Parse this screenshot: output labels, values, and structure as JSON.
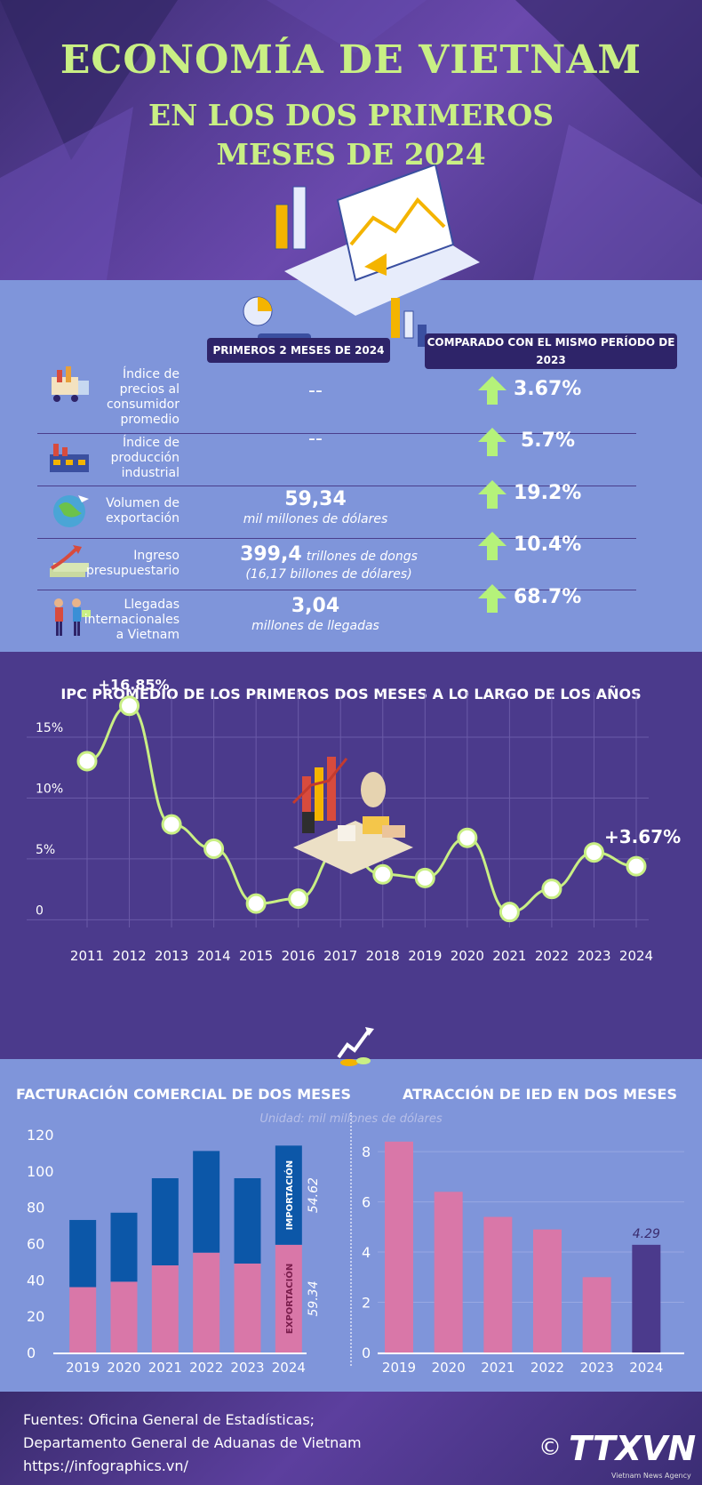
{
  "header": {
    "title_line1": "ECONOMÍA DE VIETNAM",
    "title_line2": "EN LOS DOS PRIMEROS",
    "title_line3": "MESES DE 2024"
  },
  "indicators": {
    "col1": "PRIMEROS 2 MESES DE 2024",
    "col2": "COMPARADO CON EL MISMO PERÍODO DE 2023",
    "rows": [
      {
        "label_lines": [
          "Índice de",
          "precios al",
          "consumidor",
          "promedio"
        ],
        "value": "--",
        "unit": "",
        "unit2": "",
        "change": "3.67%",
        "icon": "grocery-cart-icon"
      },
      {
        "label_lines": [
          "Índice de",
          "producción",
          "industrial"
        ],
        "value": "--",
        "unit": "",
        "unit2": "",
        "change": "5.7%",
        "icon": "factory-icon"
      },
      {
        "label_lines": [
          "Volumen de",
          "exportación"
        ],
        "value": "59,34",
        "unit": "mil millones de dólares",
        "unit2": "",
        "change": "19.2%",
        "icon": "globe-plane-icon"
      },
      {
        "label_lines": [
          "Ingreso",
          "presupuestario"
        ],
        "value": "399,4",
        "unit": "trillones de dongs",
        "unit2": "(16,17 billones de dólares)",
        "change": "10.4%",
        "icon": "money-growth-icon"
      },
      {
        "label_lines": [
          "Llegadas",
          "internacionales",
          "a Vietnam"
        ],
        "value": "3,04",
        "unit": "millones de llegadas",
        "unit2": "",
        "change": "68.7%",
        "icon": "tourists-icon"
      }
    ],
    "arrow_color": "#b5f27a"
  },
  "chart_data": [
    {
      "type": "line",
      "title": "IPC PROMEDIO DE LOS PRIMEROS DOS MESES A LO LARGO DE LOS AÑOS",
      "x": [
        "2011",
        "2012",
        "2013",
        "2014",
        "2015",
        "2016",
        "2017",
        "2018",
        "2019",
        "2020",
        "2021",
        "2022",
        "2023",
        "2024"
      ],
      "series": [
        {
          "values": [
            12.3,
            16.85,
            7.1,
            5.1,
            0.6,
            1.0,
            5.2,
            3.0,
            2.7,
            6.0,
            -0.1,
            1.8,
            4.8,
            3.67
          ]
        }
      ],
      "yticks": [
        0,
        5,
        10,
        15
      ],
      "ytick_labels": [
        "0",
        "5%",
        "10%",
        "15%"
      ],
      "ylim": [
        -1,
        18
      ],
      "annotations": [
        {
          "x": "2012",
          "text": "+16.85%"
        },
        {
          "x": "2024",
          "text": "+3.67%"
        }
      ],
      "line_color": "#c9ef84",
      "grid": true
    },
    {
      "type": "bar",
      "stacked": true,
      "title": "FACTURACIÓN COMERCIAL DE DOS MESES",
      "categories": [
        "2019",
        "2020",
        "2021",
        "2022",
        "2023",
        "2024"
      ],
      "series": [
        {
          "name": "EXPORTACIÓN",
          "values": [
            36,
            39,
            48,
            55,
            49,
            59.34
          ],
          "color": "#d977a8"
        },
        {
          "name": "IMPORTACIÓN",
          "values": [
            37,
            38,
            48,
            56,
            47,
            54.62
          ],
          "color": "#0c57a8"
        }
      ],
      "ylim": [
        0,
        120
      ],
      "yticks": [
        0,
        20,
        40,
        60,
        80,
        100,
        120
      ],
      "value_labels": {
        "export": "59.34",
        "import": "54.62"
      }
    },
    {
      "type": "bar",
      "title": "ATRACCIÓN DE IED EN DOS MESES",
      "categories": [
        "2019",
        "2020",
        "2021",
        "2022",
        "2023",
        "2024"
      ],
      "values": [
        8.4,
        6.4,
        5.4,
        4.9,
        3.0,
        4.29
      ],
      "ylim": [
        0,
        8.5
      ],
      "yticks": [
        0,
        2,
        4,
        6,
        8
      ],
      "value_label": "4.29",
      "colors": {
        "default": "#d977a8",
        "highlight": "#4b3a8c"
      }
    }
  ],
  "unit_note": "Unidad: mil millones de dólares",
  "footer": {
    "line1": "Fuentes: Oficina General de Estadísticas;",
    "line2": "Departamento General de Aduanas de Vietnam",
    "line3": "https://infographics.vn/",
    "logo": "TTXVN",
    "copyright": "©",
    "agency": "Vietnam News Agency"
  }
}
